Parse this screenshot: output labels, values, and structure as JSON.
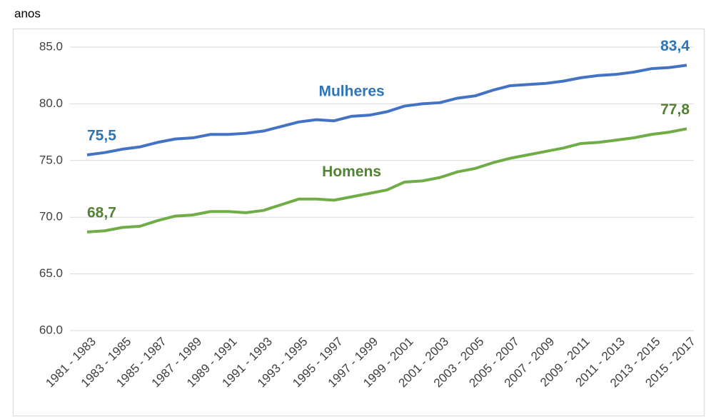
{
  "chart_data": {
    "type": "line",
    "y_label": "anos",
    "categories": [
      "1981 - 1983",
      null,
      "1983 - 1985",
      null,
      "1985 - 1987",
      null,
      "1987 - 1989",
      null,
      "1989 - 1991",
      null,
      "1991 - 1993",
      null,
      "1993 - 1995",
      null,
      "1995 - 1997",
      null,
      "1997 - 1999",
      null,
      "1999 - 2001",
      null,
      "2001 - 2003",
      null,
      "2003 - 2005",
      null,
      "2005 - 2007",
      null,
      "2007 - 2009",
      null,
      "2009 - 2011",
      null,
      "2011 - 2013",
      null,
      "2013 - 2015",
      null,
      "2015 - 2017"
    ],
    "series": [
      {
        "name": "Mulheres",
        "color": "#4472c4",
        "label_color": "#2e75b6",
        "values": [
          75.5,
          75.7,
          76.0,
          76.2,
          76.6,
          76.9,
          77.0,
          77.3,
          77.3,
          77.4,
          77.6,
          78.0,
          78.4,
          78.6,
          78.5,
          78.9,
          79.0,
          79.3,
          79.8,
          80.0,
          80.1,
          80.5,
          80.7,
          81.2,
          81.6,
          81.7,
          81.8,
          82.0,
          82.3,
          82.5,
          82.6,
          82.8,
          83.1,
          83.2,
          83.4
        ],
        "value_labels": [
          "75,5",
          null,
          null,
          null,
          null,
          null,
          null,
          null,
          null,
          null,
          null,
          null,
          null,
          null,
          null,
          null,
          null,
          null,
          null,
          null,
          null,
          null,
          null,
          null,
          null,
          null,
          null,
          null,
          null,
          null,
          null,
          null,
          null,
          null,
          "83,4"
        ]
      },
      {
        "name": "Homens",
        "color": "#70ad47",
        "label_color": "#548235",
        "values": [
          68.7,
          68.8,
          69.1,
          69.2,
          69.7,
          70.1,
          70.2,
          70.5,
          70.5,
          70.4,
          70.6,
          71.1,
          71.6,
          71.6,
          71.5,
          71.8,
          72.1,
          72.4,
          73.1,
          73.2,
          73.5,
          74.0,
          74.3,
          74.8,
          75.2,
          75.5,
          75.8,
          76.1,
          76.5,
          76.6,
          76.8,
          77.0,
          77.3,
          77.5,
          77.8
        ],
        "value_labels": [
          "68,7",
          null,
          null,
          null,
          null,
          null,
          null,
          null,
          null,
          null,
          null,
          null,
          null,
          null,
          null,
          null,
          null,
          null,
          null,
          null,
          null,
          null,
          null,
          null,
          null,
          null,
          null,
          null,
          null,
          null,
          null,
          null,
          null,
          null,
          "77,8"
        ]
      }
    ],
    "ylim": [
      60,
      85
    ],
    "yticks": [
      {
        "value": 60,
        "label": "60.0"
      },
      {
        "value": 65,
        "label": "65.0"
      },
      {
        "value": 70,
        "label": "70.0"
      },
      {
        "value": 75,
        "label": "75.0"
      },
      {
        "value": 80,
        "label": "80.0"
      },
      {
        "value": 85,
        "label": "85.0"
      }
    ],
    "grid": true
  }
}
